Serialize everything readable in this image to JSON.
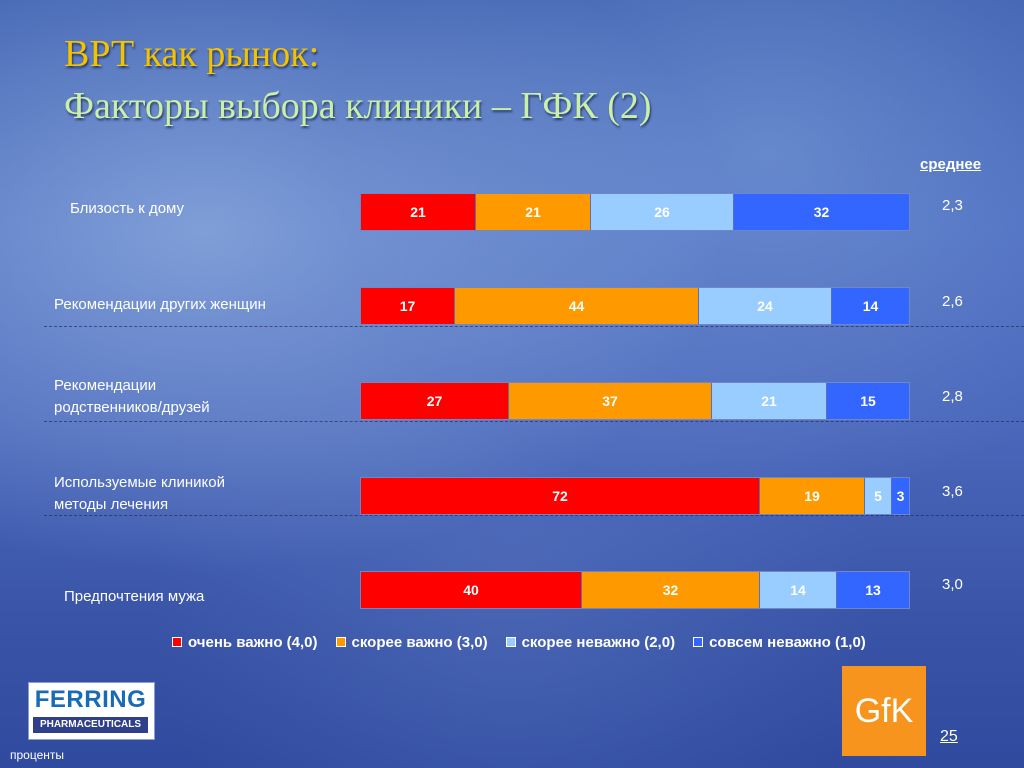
{
  "slide": {
    "title_line1": "ВРТ как рынок:",
    "title_line2": "Факторы выбора клиники – ГФК (2)",
    "avg_header": "среднее",
    "page_number": "25",
    "footnote": "проценты",
    "logo_ferring_top": "FERRING",
    "logo_ferring_bottom": "PHARMACEUTICALS",
    "logo_gfk": "GfK"
  },
  "chart_data": {
    "type": "bar",
    "orientation": "horizontal",
    "stacked": true,
    "normalized_percent": true,
    "categories": [
      [
        "Близость к дому"
      ],
      [
        "Рекомендации других женщин"
      ],
      [
        "Рекомендации",
        "родственников/друзей"
      ],
      [
        "Используемые клиникой",
        "методы лечения"
      ],
      [
        "Предпочтения мужа"
      ]
    ],
    "series": [
      {
        "name": "очень важно (4,0)",
        "color": "#ff0000",
        "text_color": "#ffffff",
        "values": [
          21,
          17,
          27,
          72,
          40
        ]
      },
      {
        "name": "скорее важно (3,0)",
        "color": "#ff9900",
        "text_color": "#ffffff",
        "values": [
          21,
          44,
          37,
          19,
          32
        ]
      },
      {
        "name": "скорее неважно (2,0)",
        "color": "#99ccff",
        "text_color": "#ffffff",
        "values": [
          26,
          24,
          21,
          5,
          14
        ]
      },
      {
        "name": "совсем неважно (1,0)",
        "color": "#3366ff",
        "text_color": "#ffffff",
        "values": [
          32,
          14,
          15,
          3,
          13
        ]
      }
    ],
    "averages": [
      "2,3",
      "2,6",
      "2,8",
      "3,6",
      "3,0"
    ],
    "legend_position": "bottom",
    "grid": false
  }
}
